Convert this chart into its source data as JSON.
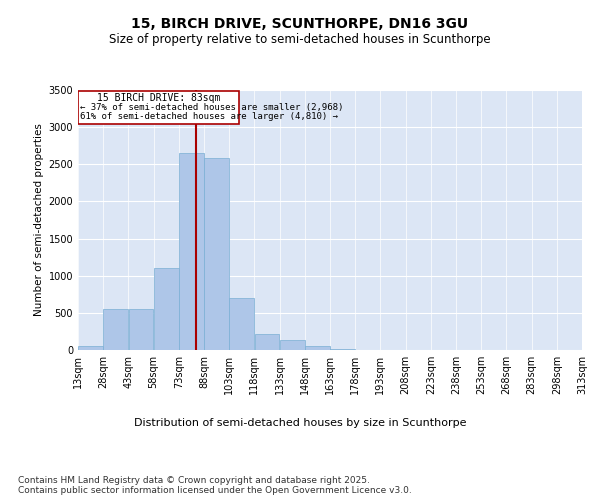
{
  "title_line1": "15, BIRCH DRIVE, SCUNTHORPE, DN16 3GU",
  "title_line2": "Size of property relative to semi-detached houses in Scunthorpe",
  "xlabel": "Distribution of semi-detached houses by size in Scunthorpe",
  "ylabel": "Number of semi-detached properties",
  "annotation_title": "15 BIRCH DRIVE: 83sqm",
  "annotation_line2": "← 37% of semi-detached houses are smaller (2,968)",
  "annotation_line3": "61% of semi-detached houses are larger (4,810) →",
  "property_size": 83,
  "bin_edges": [
    13,
    28,
    43,
    58,
    73,
    88,
    103,
    118,
    133,
    148,
    163,
    178,
    193,
    208,
    223,
    238,
    253,
    268,
    283,
    298,
    313
  ],
  "bin_labels": [
    "13sqm",
    "28sqm",
    "43sqm",
    "58sqm",
    "73sqm",
    "88sqm",
    "103sqm",
    "118sqm",
    "133sqm",
    "148sqm",
    "163sqm",
    "178sqm",
    "193sqm",
    "208sqm",
    "223sqm",
    "238sqm",
    "253sqm",
    "268sqm",
    "283sqm",
    "298sqm",
    "313sqm"
  ],
  "bar_heights": [
    50,
    550,
    550,
    1100,
    2650,
    2580,
    700,
    220,
    130,
    60,
    20,
    5,
    2,
    1,
    0,
    0,
    0,
    0,
    0,
    0
  ],
  "bar_color": "#aec6e8",
  "bar_edge_color": "#7aafd4",
  "vline_color": "#aa0000",
  "vline_value": 83,
  "annotation_box_color": "#aa0000",
  "ylim": [
    0,
    3500
  ],
  "yticks": [
    0,
    500,
    1000,
    1500,
    2000,
    2500,
    3000,
    3500
  ],
  "background_color": "#dce6f5",
  "plot_bg_color": "#dce6f5",
  "footer_line1": "Contains HM Land Registry data © Crown copyright and database right 2025.",
  "footer_line2": "Contains public sector information licensed under the Open Government Licence v3.0.",
  "title_fontsize": 10,
  "subtitle_fontsize": 8.5,
  "tick_fontsize": 7,
  "ylabel_fontsize": 7.5,
  "xlabel_fontsize": 8,
  "footer_fontsize": 6.5,
  "annotation_fontsize": 7
}
